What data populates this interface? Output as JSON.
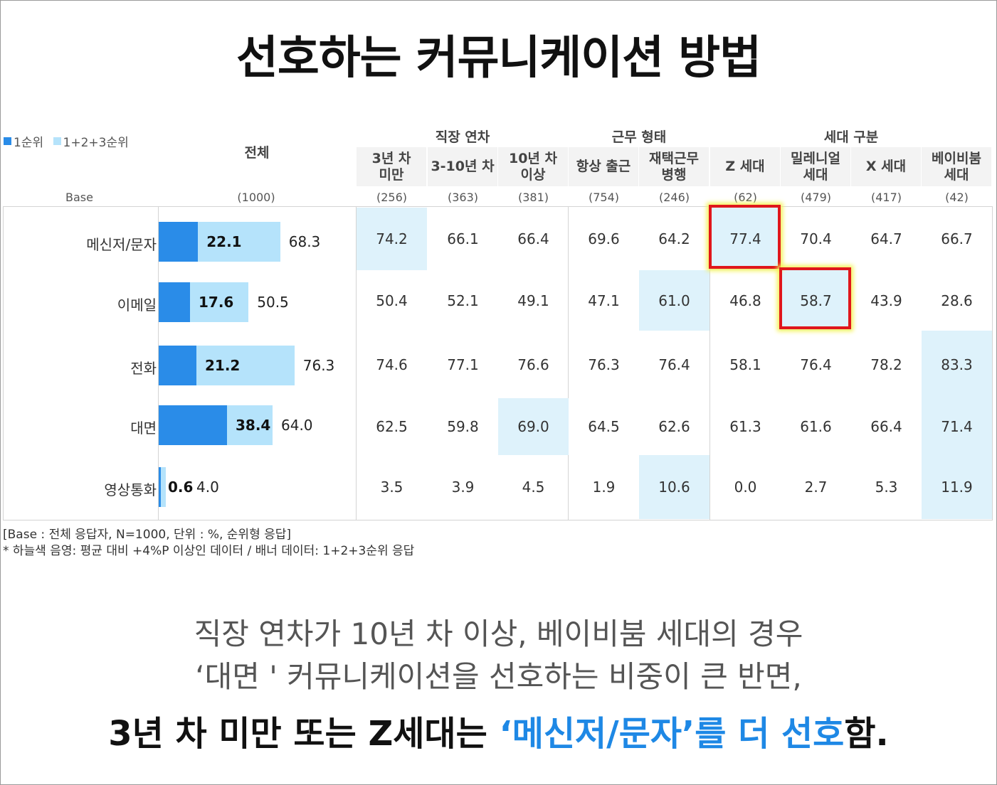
{
  "title": "선호하는 커뮤니케이션 방법",
  "legend": {
    "first": "1순위",
    "top3": "1+2+3순위",
    "first_color": "#2a8ce8",
    "top3_color": "#b5e3fb"
  },
  "header": {
    "total": "전체",
    "base_label": "Base",
    "total_base": "(1000)",
    "groups": [
      {
        "label": "직장 연차",
        "span": 3
      },
      {
        "label": "근무 형태",
        "span": 2
      },
      {
        "label": "세대 구분",
        "span": 4
      }
    ],
    "columns": [
      {
        "label": "3년 차\n미만",
        "base": "(256)"
      },
      {
        "label": "3-10년 차",
        "base": "(363)"
      },
      {
        "label": "10년 차\n이상",
        "base": "(381)"
      },
      {
        "label": "항상 출근",
        "base": "(754)"
      },
      {
        "label": "재택근무\n병행",
        "base": "(246)"
      },
      {
        "label": "Z 세대",
        "base": "(62)"
      },
      {
        "label": "밀레니얼\n세대",
        "base": "(479)"
      },
      {
        "label": "X 세대",
        "base": "(417)"
      },
      {
        "label": "베이비붐\n세대",
        "base": "(42)"
      }
    ]
  },
  "chart_data": {
    "type": "bar",
    "categories": [
      "메신저/문자",
      "이메일",
      "전화",
      "대면",
      "영상통화"
    ],
    "series": [
      {
        "name": "1순위",
        "values": [
          22.1,
          17.6,
          21.2,
          38.4,
          0.6
        ]
      },
      {
        "name": "1+2+3순위",
        "values": [
          68.3,
          50.5,
          76.3,
          64.0,
          4.0
        ]
      }
    ],
    "table": {
      "rows": [
        {
          "label": "메신저/문자",
          "values": [
            "74.2",
            "66.1",
            "66.4",
            "69.6",
            "64.2",
            "77.4",
            "70.4",
            "64.7",
            "66.7"
          ],
          "shaded": [
            0,
            5
          ],
          "highlighted": [
            5
          ]
        },
        {
          "label": "이메일",
          "values": [
            "50.4",
            "52.1",
            "49.1",
            "47.1",
            "61.0",
            "46.8",
            "58.7",
            "43.9",
            "28.6"
          ],
          "shaded": [
            4,
            6
          ],
          "highlighted": [
            6
          ]
        },
        {
          "label": "전화",
          "values": [
            "74.6",
            "77.1",
            "76.6",
            "76.3",
            "76.4",
            "58.1",
            "76.4",
            "78.2",
            "83.3"
          ],
          "shaded": [
            8
          ],
          "highlighted": []
        },
        {
          "label": "대면",
          "values": [
            "62.5",
            "59.8",
            "69.0",
            "64.5",
            "62.6",
            "61.3",
            "61.6",
            "66.4",
            "71.4"
          ],
          "shaded": [
            2,
            8
          ],
          "highlighted": []
        },
        {
          "label": "영상통화",
          "values": [
            "3.5",
            "3.9",
            "4.5",
            "1.9",
            "10.6",
            "0.0",
            "2.7",
            "5.3",
            "11.9"
          ],
          "shaded": [
            4,
            8
          ],
          "highlighted": []
        }
      ]
    },
    "shade_color": "#def2fb",
    "highlight_color": "#e0161b"
  },
  "notes": [
    "[Base : 전체 응답자, N=1000, 단위 : %, 순위형 응답]",
    "* 하늘색 음영: 평균 대비 +4%P 이상인 데이터 / 배너 데이터: 1+2+3순위 응답"
  ],
  "summary": {
    "line1": "직장 연차가 10년 차 이상, 베이비붐 세대의 경우",
    "line2": "‘대면 ' 커뮤니케이션을 선호하는 비중이 큰 반면,",
    "line3_part1": "3년 차 미만 또는 Z세대는 ",
    "line3_accent": "‘메신저/문자’를 더 선호",
    "line3_part2": "함."
  }
}
